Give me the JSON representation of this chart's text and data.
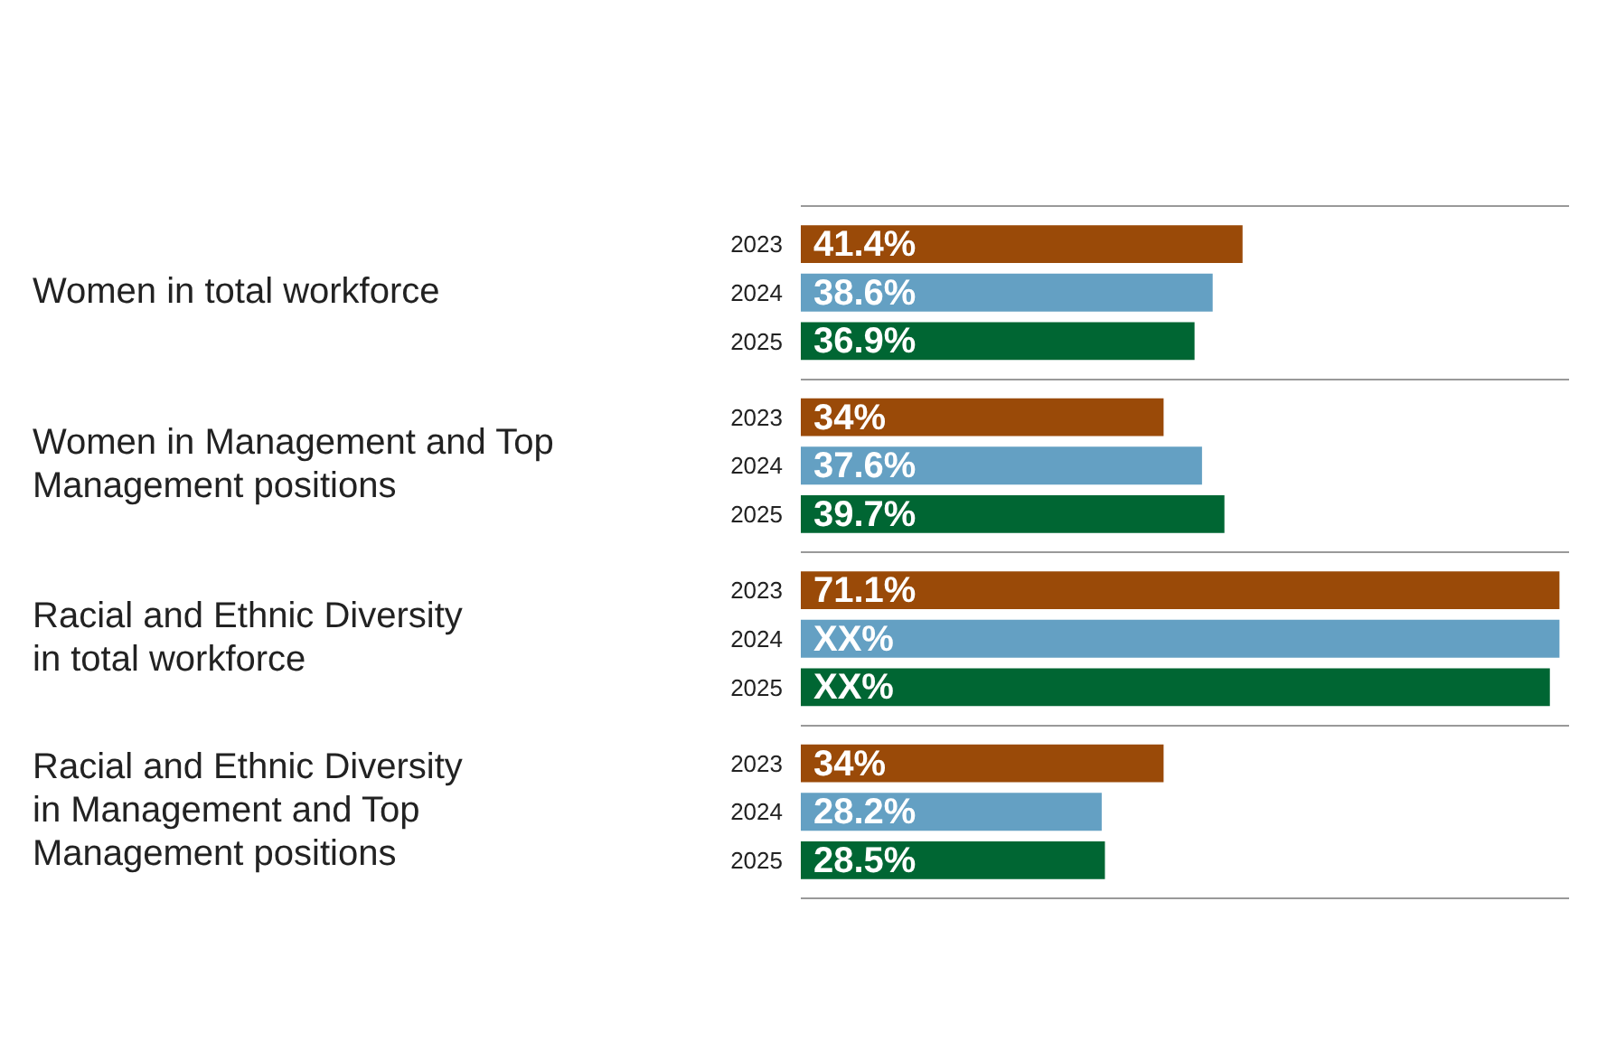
{
  "chart_data": {
    "type": "bar",
    "orientation": "horizontal",
    "categories": [
      "Women in total workforce",
      "Women in Management and Top Management positions",
      "Racial and Ethnic Diversity in total workforce",
      "Racial and Ethnic Diversity in Management and Top Management positions"
    ],
    "series": [
      {
        "name": "2023",
        "color": "#9a4a08",
        "values": [
          41.4,
          34,
          71.1,
          34
        ],
        "value_labels": [
          "41.4%",
          "34%",
          "71.1%",
          "34%"
        ]
      },
      {
        "name": "2024",
        "color": "#64a0c3",
        "values": [
          38.6,
          37.6,
          71.1,
          28.2
        ],
        "value_labels": [
          "38.6%",
          "37.6%",
          "XX%",
          "28.2%"
        ]
      },
      {
        "name": "2025",
        "color": "#006633",
        "values": [
          36.9,
          39.7,
          70.2,
          28.5
        ],
        "value_labels": [
          "36.9%",
          "39.7%",
          "XX%",
          "28.5%"
        ]
      }
    ],
    "xlim": [
      0,
      72
    ],
    "grid": "y",
    "legend": false,
    "tick_labels": "y"
  }
}
